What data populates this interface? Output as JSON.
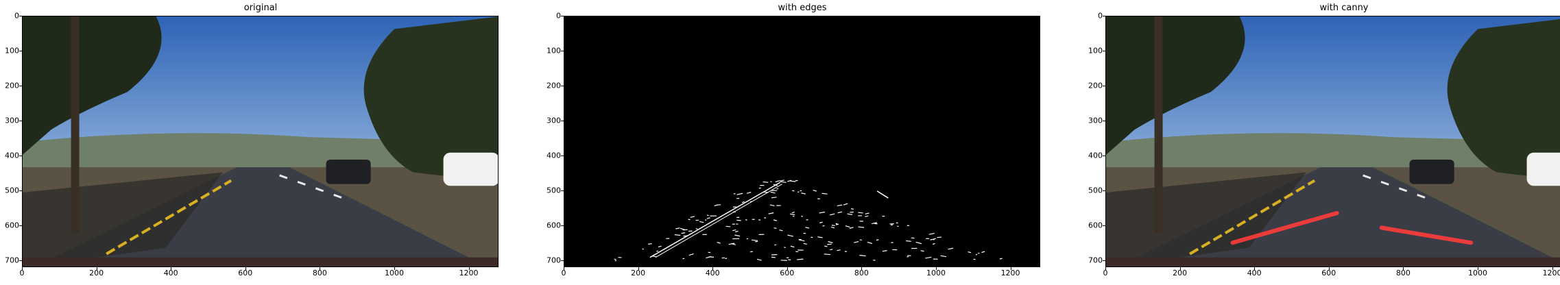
{
  "panels": [
    {
      "title": "original",
      "kind": "photo"
    },
    {
      "title": "with edges",
      "kind": "edges"
    },
    {
      "title": "with canny",
      "kind": "photo-lines"
    }
  ],
  "axes": {
    "x_ticks": [
      "0",
      "200",
      "400",
      "600",
      "800",
      "1000",
      "1200"
    ],
    "y_ticks": [
      "0",
      "100",
      "200",
      "300",
      "400",
      "500",
      "600",
      "700"
    ],
    "x_values": [
      0,
      200,
      400,
      600,
      800,
      1000,
      1200
    ],
    "y_values": [
      0,
      100,
      200,
      300,
      400,
      500,
      600,
      700
    ],
    "x_range": [
      0,
      1280
    ],
    "y_range": [
      0,
      720
    ]
  },
  "detected_lanes": [
    {
      "x1": 340,
      "y1": 648,
      "x2": 620,
      "y2": 563
    },
    {
      "x1": 740,
      "y1": 605,
      "x2": 980,
      "y2": 648
    }
  ],
  "colors": {
    "sky": "#3f77c4",
    "road": "#3a3d45",
    "lane_line": "#ff3b3b",
    "yellow_line": "#d8b022"
  }
}
